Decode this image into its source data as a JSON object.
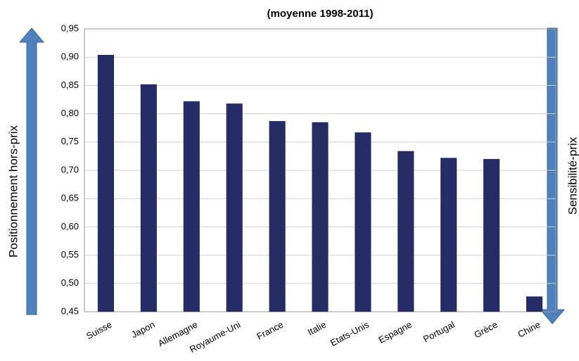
{
  "chart_data": {
    "type": "bar",
    "title": "(moyenne 1998-2011)",
    "left_axis_label": "Positionnement hors-prix",
    "right_axis_label": "Sensibilité-prix",
    "categories": [
      "Suisse",
      "Japon",
      "Allemagne",
      "Royaume-Uni",
      "France",
      "Italie",
      "Etats-Unis",
      "Espagne",
      "Portugal",
      "Grèce",
      "Chine"
    ],
    "values": [
      0.904,
      0.852,
      0.822,
      0.818,
      0.787,
      0.785,
      0.767,
      0.734,
      0.722,
      0.72,
      0.477
    ],
    "color": "#262d66",
    "ylim": [
      0.45,
      0.95
    ],
    "yticks": [
      {
        "value": 0.45,
        "label": "0,45"
      },
      {
        "value": 0.5,
        "label": "0,50"
      },
      {
        "value": 0.55,
        "label": "0,55"
      },
      {
        "value": 0.6,
        "label": "0,60"
      },
      {
        "value": 0.65,
        "label": "0,65"
      },
      {
        "value": 0.7,
        "label": "0,70"
      },
      {
        "value": 0.75,
        "label": "0,75"
      },
      {
        "value": 0.8,
        "label": "0,80"
      },
      {
        "value": 0.85,
        "label": "0,85"
      },
      {
        "value": 0.9,
        "label": "0,90"
      },
      {
        "value": 0.95,
        "label": "0,95"
      }
    ],
    "grid": true
  }
}
